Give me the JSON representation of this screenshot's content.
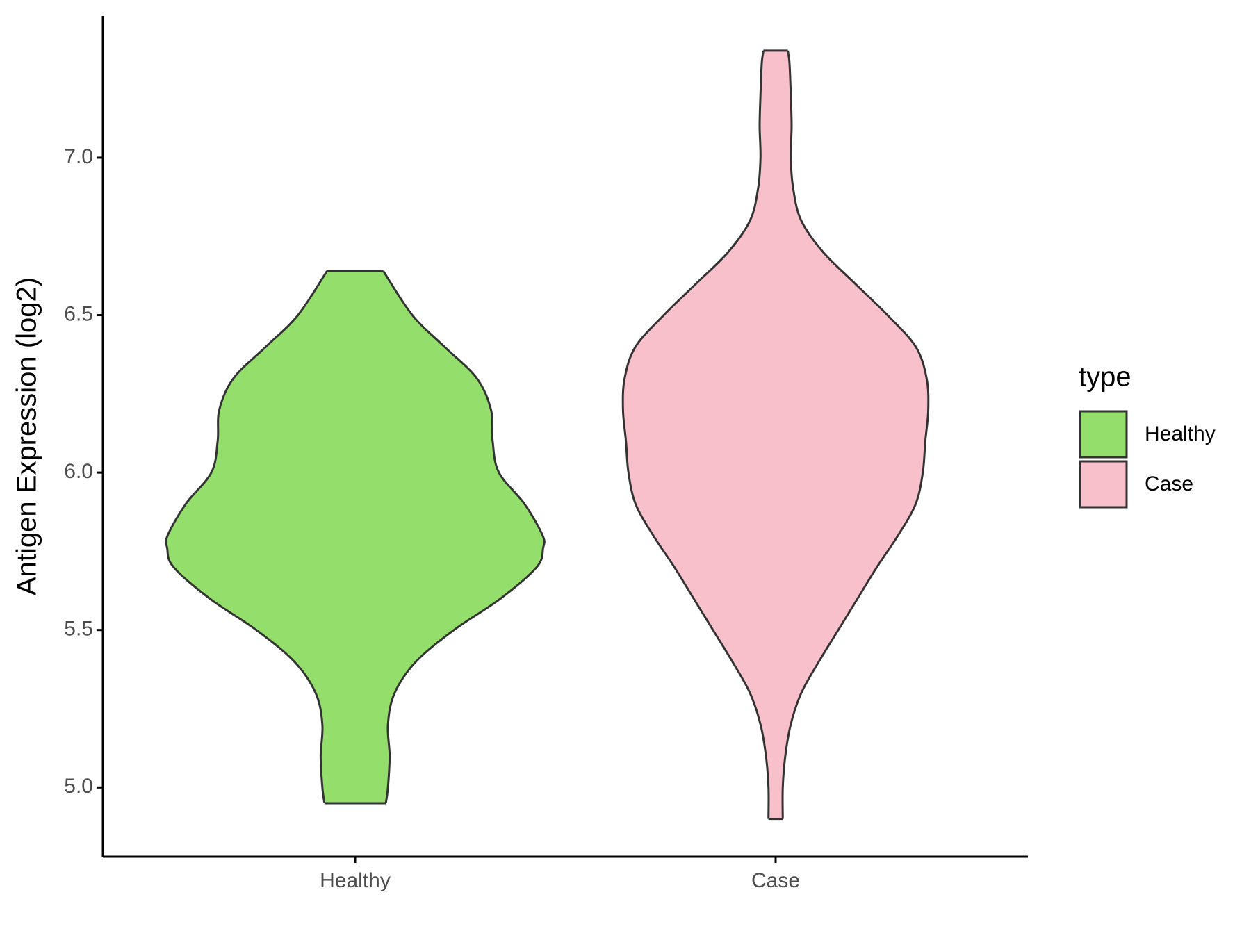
{
  "chart_data": {
    "type": "violin",
    "y_label": "Antigen Expression (log2)",
    "categories": [
      "Healthy",
      "Case"
    ],
    "xlim": [
      0.4,
      2.6
    ],
    "ylim": [
      4.78,
      7.45
    ],
    "yticks": [
      {
        "value": 5,
        "label": "5.0"
      },
      5.5,
      {
        "value": 6,
        "label": "6.0"
      },
      6.5,
      {
        "value": 7,
        "label": "7.0"
      }
    ],
    "legend_title": "type",
    "legend_position": "right",
    "series": [
      {
        "name": "Healthy",
        "color": "#94de6b",
        "y": [
          6.64,
          6.5,
          6.4,
          6.3,
          6.2,
          6.1,
          6.0,
          5.9,
          5.8,
          5.76,
          5.7,
          5.6,
          5.5,
          5.4,
          5.3,
          5.2,
          5.1,
          5.0,
          4.95
        ],
        "half_width": [
          0.067,
          0.136,
          0.212,
          0.289,
          0.323,
          0.327,
          0.342,
          0.403,
          0.446,
          0.447,
          0.432,
          0.346,
          0.235,
          0.145,
          0.094,
          0.078,
          0.082,
          0.078,
          0.073
        ]
      },
      {
        "name": "Case",
        "color": "#f8c0cb",
        "y": [
          7.34,
          7.3,
          7.2,
          7.1,
          7.0,
          6.9,
          6.8,
          6.7,
          6.6,
          6.5,
          6.4,
          6.3,
          6.2,
          6.1,
          6.0,
          5.9,
          5.8,
          5.7,
          5.6,
          5.5,
          5.4,
          5.3,
          5.2,
          5.1,
          5.0,
          4.9
        ],
        "half_width": [
          0.029,
          0.033,
          0.036,
          0.038,
          0.036,
          0.042,
          0.061,
          0.113,
          0.189,
          0.266,
          0.333,
          0.359,
          0.363,
          0.356,
          0.35,
          0.333,
          0.291,
          0.241,
          0.195,
          0.149,
          0.103,
          0.061,
          0.036,
          0.023,
          0.017,
          0.017
        ]
      }
    ]
  }
}
